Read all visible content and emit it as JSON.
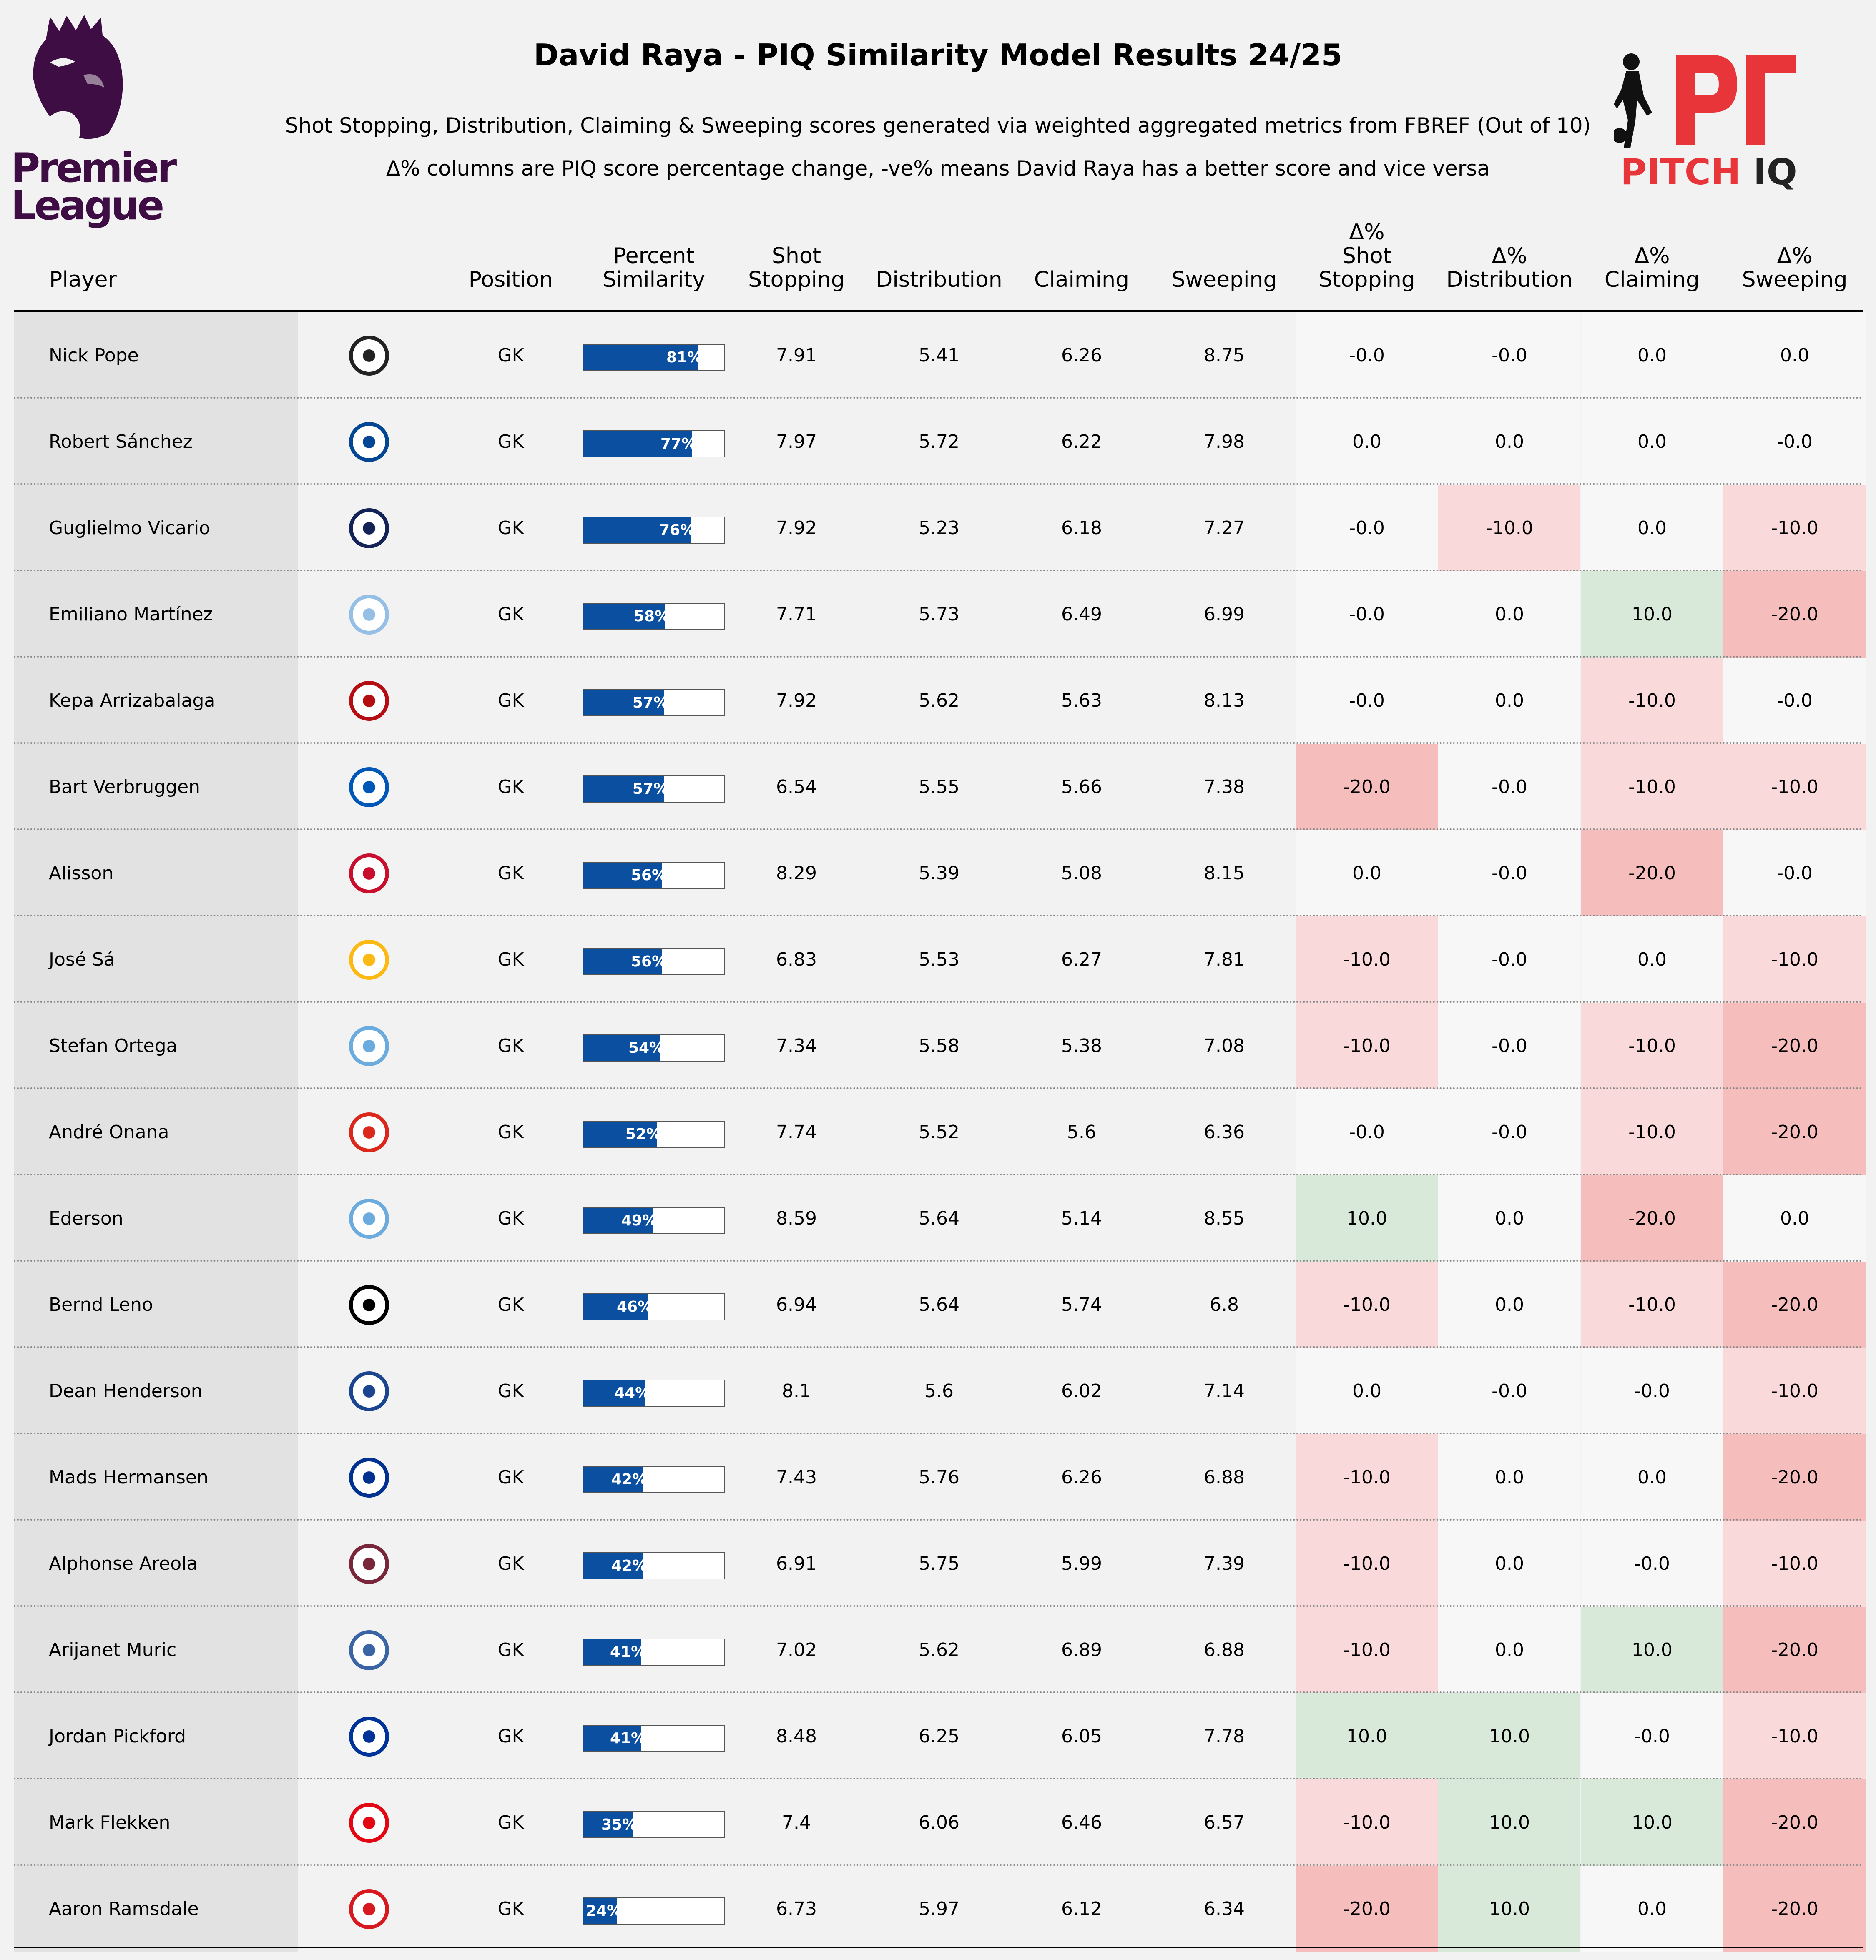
{
  "title": "David Raya - PIQ Similarity Model Results 24/25",
  "subtitle_1": "Shot Stopping, Distribution, Claiming & Sweeping scores generated via weighted aggregated metrics from FBREF (Out of 10)",
  "subtitle_2": "Δ% columns are PIQ score percentage change, -ve% means David Raya has a better score and vice versa",
  "logos": {
    "left": {
      "line1": "Premier",
      "line2": "League",
      "color": "#3d0d43"
    },
    "right": {
      "word1": "PITCH",
      "word2": "IQ",
      "red": "#e8353a",
      "dark": "#222222"
    }
  },
  "colors": {
    "background": "#f2f2f2",
    "player_column": "#e2e2e2",
    "bar": "#0b4fa1",
    "delta_neutral": "#f7f7f7",
    "delta_plus10": "#d9e9d9",
    "delta_minus10": "#f9d9d9",
    "delta_minus20": "#f6bdbd"
  },
  "columns": [
    {
      "key": "player",
      "line1": "",
      "line2": "Player"
    },
    {
      "key": "position",
      "line1": "",
      "line2": "Position"
    },
    {
      "key": "similarity",
      "line1": "Percent",
      "line2": "Similarity"
    },
    {
      "key": "shot_stopping",
      "line1": "Shot",
      "line2": "Stopping"
    },
    {
      "key": "distribution",
      "line1": "",
      "line2": "Distribution"
    },
    {
      "key": "claiming",
      "line1": "",
      "line2": "Claiming"
    },
    {
      "key": "sweeping",
      "line1": "",
      "line2": "Sweeping"
    },
    {
      "key": "d_shot",
      "line1": "Δ%",
      "line2": "Shot Stopping"
    },
    {
      "key": "d_dist",
      "line1": "Δ%",
      "line2": "Distribution"
    },
    {
      "key": "d_claim",
      "line1": "Δ%",
      "line2": "Claiming"
    },
    {
      "key": "d_sweep",
      "line1": "Δ%",
      "line2": "Sweeping"
    }
  ],
  "chart_data": {
    "type": "table",
    "rows": [
      {
        "player": "Nick Pope",
        "crest": "newcastle-crest-icon",
        "crest_color": "#222222",
        "position": "GK",
        "similarity": 81,
        "similarity_label": "81%",
        "shot_stopping": "7.91",
        "distribution": "5.41",
        "claiming": "6.26",
        "sweeping": "8.75",
        "d_shot": "-0.0",
        "d_dist": "-0.0",
        "d_claim": "0.0",
        "d_sweep": "0.0"
      },
      {
        "player": "Robert Sánchez",
        "crest": "chelsea-crest-icon",
        "crest_color": "#034694",
        "position": "GK",
        "similarity": 77,
        "similarity_label": "77%",
        "shot_stopping": "7.97",
        "distribution": "5.72",
        "claiming": "6.22",
        "sweeping": "7.98",
        "d_shot": "0.0",
        "d_dist": "0.0",
        "d_claim": "0.0",
        "d_sweep": "-0.0"
      },
      {
        "player": "Guglielmo Vicario",
        "crest": "tottenham-crest-icon",
        "crest_color": "#132257",
        "position": "GK",
        "similarity": 76,
        "similarity_label": "76%",
        "shot_stopping": "7.92",
        "distribution": "5.23",
        "claiming": "6.18",
        "sweeping": "7.27",
        "d_shot": "-0.0",
        "d_dist": "-10.0",
        "d_claim": "0.0",
        "d_sweep": "-10.0"
      },
      {
        "player": "Emiliano Martínez",
        "crest": "aston-villa-crest-icon",
        "crest_color": "#95bfe5",
        "position": "GK",
        "similarity": 58,
        "similarity_label": "58%",
        "shot_stopping": "7.71",
        "distribution": "5.73",
        "claiming": "6.49",
        "sweeping": "6.99",
        "d_shot": "-0.0",
        "d_dist": "0.0",
        "d_claim": "10.0",
        "d_sweep": "-20.0"
      },
      {
        "player": "Kepa Arrizabalaga",
        "crest": "bournemouth-crest-icon",
        "crest_color": "#b50e12",
        "position": "GK",
        "similarity": 57,
        "similarity_label": "57%",
        "shot_stopping": "7.92",
        "distribution": "5.62",
        "claiming": "5.63",
        "sweeping": "8.13",
        "d_shot": "-0.0",
        "d_dist": "0.0",
        "d_claim": "-10.0",
        "d_sweep": "-0.0"
      },
      {
        "player": "Bart Verbruggen",
        "crest": "brighton-crest-icon",
        "crest_color": "#0057b8",
        "position": "GK",
        "similarity": 57,
        "similarity_label": "57%",
        "shot_stopping": "6.54",
        "distribution": "5.55",
        "claiming": "5.66",
        "sweeping": "7.38",
        "d_shot": "-20.0",
        "d_dist": "-0.0",
        "d_claim": "-10.0",
        "d_sweep": "-10.0"
      },
      {
        "player": "Alisson",
        "crest": "liverpool-crest-icon",
        "crest_color": "#c8102e",
        "position": "GK",
        "similarity": 56,
        "similarity_label": "56%",
        "shot_stopping": "8.29",
        "distribution": "5.39",
        "claiming": "5.08",
        "sweeping": "8.15",
        "d_shot": "0.0",
        "d_dist": "-0.0",
        "d_claim": "-20.0",
        "d_sweep": "-0.0"
      },
      {
        "player": "José Sá",
        "crest": "wolves-crest-icon",
        "crest_color": "#fdb913",
        "position": "GK",
        "similarity": 56,
        "similarity_label": "56%",
        "shot_stopping": "6.83",
        "distribution": "5.53",
        "claiming": "6.27",
        "sweeping": "7.81",
        "d_shot": "-10.0",
        "d_dist": "-0.0",
        "d_claim": "0.0",
        "d_sweep": "-10.0"
      },
      {
        "player": "Stefan Ortega",
        "crest": "man-city-crest-icon",
        "crest_color": "#6cabdd",
        "position": "GK",
        "similarity": 54,
        "similarity_label": "54%",
        "shot_stopping": "7.34",
        "distribution": "5.58",
        "claiming": "5.38",
        "sweeping": "7.08",
        "d_shot": "-10.0",
        "d_dist": "-0.0",
        "d_claim": "-10.0",
        "d_sweep": "-20.0"
      },
      {
        "player": "André Onana",
        "crest": "man-united-crest-icon",
        "crest_color": "#da291c",
        "position": "GK",
        "similarity": 52,
        "similarity_label": "52%",
        "shot_stopping": "7.74",
        "distribution": "5.52",
        "claiming": "5.6",
        "sweeping": "6.36",
        "d_shot": "-0.0",
        "d_dist": "-0.0",
        "d_claim": "-10.0",
        "d_sweep": "-20.0"
      },
      {
        "player": "Ederson",
        "crest": "man-city-crest-icon",
        "crest_color": "#6cabdd",
        "position": "GK",
        "similarity": 49,
        "similarity_label": "49%",
        "shot_stopping": "8.59",
        "distribution": "5.64",
        "claiming": "5.14",
        "sweeping": "8.55",
        "d_shot": "10.0",
        "d_dist": "0.0",
        "d_claim": "-20.0",
        "d_sweep": "0.0"
      },
      {
        "player": "Bernd Leno",
        "crest": "fulham-crest-icon",
        "crest_color": "#000000",
        "position": "GK",
        "similarity": 46,
        "similarity_label": "46%",
        "shot_stopping": "6.94",
        "distribution": "5.64",
        "claiming": "5.74",
        "sweeping": "6.8",
        "d_shot": "-10.0",
        "d_dist": "0.0",
        "d_claim": "-10.0",
        "d_sweep": "-20.0"
      },
      {
        "player": "Dean Henderson",
        "crest": "crystal-palace-crest-icon",
        "crest_color": "#1b458f",
        "position": "GK",
        "similarity": 44,
        "similarity_label": "44%",
        "shot_stopping": "8.1",
        "distribution": "5.6",
        "claiming": "6.02",
        "sweeping": "7.14",
        "d_shot": "0.0",
        "d_dist": "-0.0",
        "d_claim": "-0.0",
        "d_sweep": "-10.0"
      },
      {
        "player": "Mads Hermansen",
        "crest": "leicester-crest-icon",
        "crest_color": "#003090",
        "position": "GK",
        "similarity": 42,
        "similarity_label": "42%",
        "shot_stopping": "7.43",
        "distribution": "5.76",
        "claiming": "6.26",
        "sweeping": "6.88",
        "d_shot": "-10.0",
        "d_dist": "0.0",
        "d_claim": "0.0",
        "d_sweep": "-20.0"
      },
      {
        "player": "Alphonse Areola",
        "crest": "west-ham-crest-icon",
        "crest_color": "#7a263a",
        "position": "GK",
        "similarity": 42,
        "similarity_label": "42%",
        "shot_stopping": "6.91",
        "distribution": "5.75",
        "claiming": "5.99",
        "sweeping": "7.39",
        "d_shot": "-10.0",
        "d_dist": "0.0",
        "d_claim": "-0.0",
        "d_sweep": "-10.0"
      },
      {
        "player": "Arijanet Muric",
        "crest": "ipswich-crest-icon",
        "crest_color": "#3a64a3",
        "position": "GK",
        "similarity": 41,
        "similarity_label": "41%",
        "shot_stopping": "7.02",
        "distribution": "5.62",
        "claiming": "6.89",
        "sweeping": "6.88",
        "d_shot": "-10.0",
        "d_dist": "0.0",
        "d_claim": "10.0",
        "d_sweep": "-20.0"
      },
      {
        "player": "Jordan Pickford",
        "crest": "everton-crest-icon",
        "crest_color": "#003399",
        "position": "GK",
        "similarity": 41,
        "similarity_label": "41%",
        "shot_stopping": "8.48",
        "distribution": "6.25",
        "claiming": "6.05",
        "sweeping": "7.78",
        "d_shot": "10.0",
        "d_dist": "10.0",
        "d_claim": "-0.0",
        "d_sweep": "-10.0"
      },
      {
        "player": "Mark Flekken",
        "crest": "brentford-crest-icon",
        "crest_color": "#e30613",
        "position": "GK",
        "similarity": 35,
        "similarity_label": "35%",
        "shot_stopping": "7.4",
        "distribution": "6.06",
        "claiming": "6.46",
        "sweeping": "6.57",
        "d_shot": "-10.0",
        "d_dist": "10.0",
        "d_claim": "10.0",
        "d_sweep": "-20.0"
      },
      {
        "player": "Aaron Ramsdale",
        "crest": "southampton-crest-icon",
        "crest_color": "#d71920",
        "position": "GK",
        "similarity": 24,
        "similarity_label": "24%",
        "shot_stopping": "6.73",
        "distribution": "5.97",
        "claiming": "6.12",
        "sweeping": "6.34",
        "d_shot": "-20.0",
        "d_dist": "10.0",
        "d_claim": "0.0",
        "d_sweep": "-20.0"
      }
    ]
  }
}
